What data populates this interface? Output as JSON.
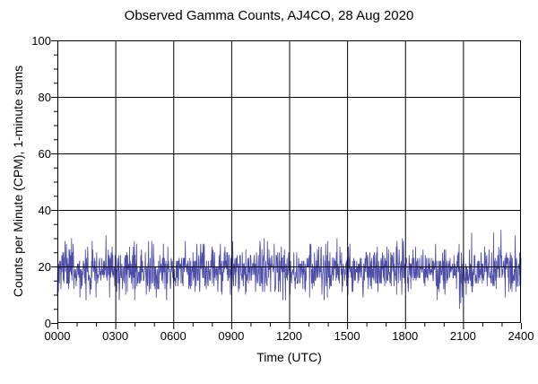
{
  "title": "Observed Gamma Counts, AJ4CO, 28 Aug 2020",
  "colors": {
    "background": "#ffffff",
    "axis": "#000000",
    "grid": "#000000",
    "trace": "#4444a4"
  },
  "chart_data": {
    "type": "line",
    "title": "Observed Gamma Counts, AJ4CO, 28 Aug 2020",
    "xlabel": "Time (UTC)",
    "ylabel": "Counts per Minute (CPM), 1-minute sums",
    "xlim_minutes": [
      0,
      1440
    ],
    "ylim": [
      0,
      100
    ],
    "grid": "major-both",
    "legend": "none",
    "x_major_ticks": {
      "interval_minutes": 180,
      "labels": [
        "0000",
        "0300",
        "0600",
        "0900",
        "1200",
        "1500",
        "1800",
        "2100",
        "2400"
      ]
    },
    "x_minor_interval_minutes": 60,
    "y_major_ticks": {
      "values": [
        0,
        20,
        40,
        60,
        80,
        100
      ],
      "labels": [
        "0",
        "20",
        "40",
        "60",
        "80",
        "100"
      ]
    },
    "y_minor_interval": 5,
    "series": [
      {
        "name": "gamma-counts-1min-sums",
        "color": "#4444a4",
        "points_per_day": 1440,
        "sample_interval_minutes": 1,
        "approx_mean_cpm": 19,
        "approx_std_cpm": 4.4,
        "observed_min_cpm": 3,
        "observed_max_cpm": 31,
        "seed": 20200828
      }
    ]
  }
}
